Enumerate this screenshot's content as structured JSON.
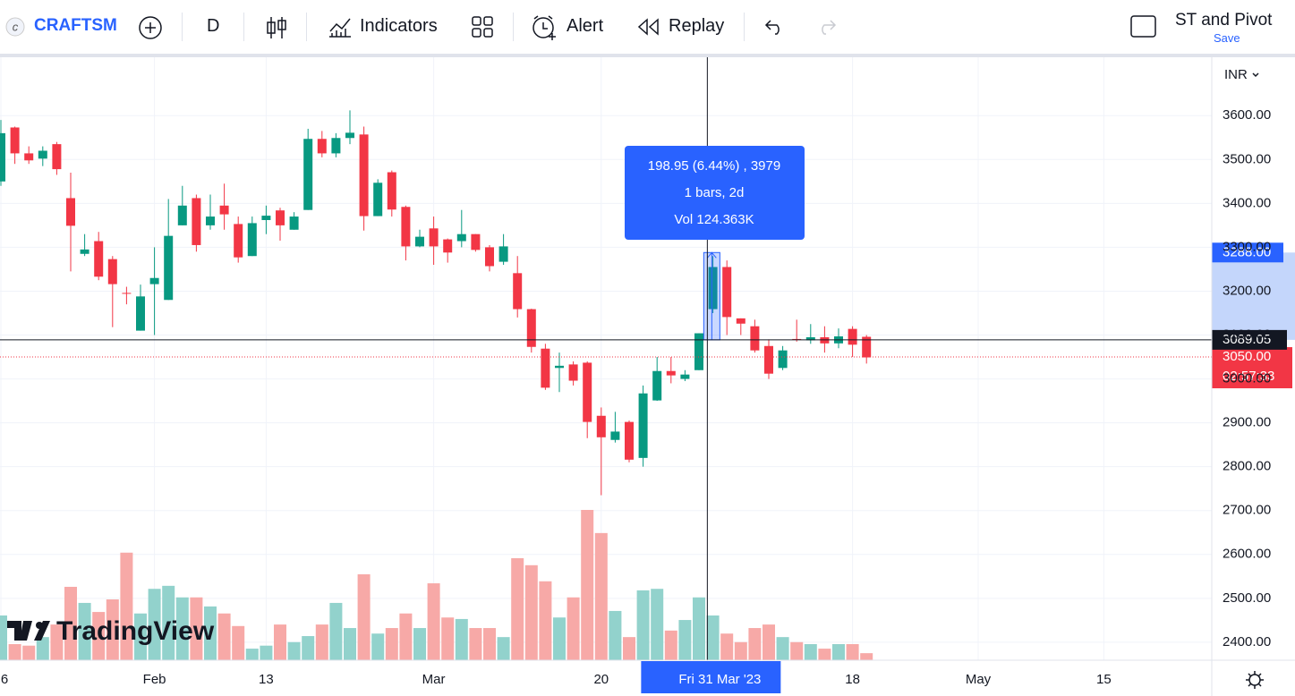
{
  "toolbar": {
    "symbol": "CRAFTSM",
    "interval": "D",
    "indicators": "Indicators",
    "alert": "Alert",
    "replay": "Replay",
    "layout": "ST and Pivot",
    "save": "Save"
  },
  "chart_data": {
    "type": "candlestick",
    "currency": "INR",
    "watermark": "TradingView",
    "open": [
      3450,
      3573,
      3514,
      3502,
      3535,
      3412,
      3285,
      3314,
      3273,
      3196,
      3110,
      3216,
      3180,
      3350,
      3412,
      3350,
      3395,
      3353,
      3280,
      3362,
      3384,
      3340,
      3385,
      3547,
      3514,
      3549,
      3557,
      3371,
      3471,
      3392,
      3302,
      3343,
      3318,
      3314,
      3330,
      3300,
      3267,
      3241,
      3159,
      3069,
      3025,
      3033,
      3037,
      2916,
      2861,
      2902,
      2820,
      2951,
      3018,
      3000,
      3020,
      3159,
      3255,
      3138,
      3120,
      3075,
      3025,
      3091,
      3088,
      3095,
      3081,
      3114,
      3096
    ],
    "high": [
      3590,
      3575,
      3530,
      3530,
      3540,
      3470,
      3330,
      3335,
      3280,
      3210,
      3215,
      3300,
      3410,
      3440,
      3420,
      3420,
      3445,
      3370,
      3370,
      3395,
      3390,
      3380,
      3570,
      3565,
      3560,
      3612,
      3575,
      3455,
      3475,
      3395,
      3340,
      3370,
      3320,
      3385,
      3330,
      3305,
      3330,
      3280,
      3160,
      3080,
      3060,
      3040,
      3040,
      2935,
      2925,
      2905,
      2985,
      3050,
      3050,
      3020,
      3104,
      3280,
      3270,
      3138,
      3135,
      3090,
      3075,
      3135,
      3125,
      3120,
      3115,
      3120,
      3100
    ],
    "low": [
      3440,
      3490,
      3490,
      3485,
      3465,
      3245,
      3280,
      3225,
      3118,
      3170,
      3110,
      3100,
      3180,
      3350,
      3290,
      3340,
      3340,
      3265,
      3280,
      3330,
      3315,
      3340,
      3385,
      3505,
      3505,
      3535,
      3338,
      3371,
      3370,
      3270,
      3300,
      3260,
      3265,
      3300,
      3290,
      3245,
      3260,
      3140,
      3060,
      2975,
      2970,
      2985,
      2865,
      2735,
      2855,
      2810,
      2800,
      2950,
      2990,
      2995,
      3020,
      3150,
      3100,
      3100,
      3060,
      3000,
      3020,
      3085,
      3080,
      3060,
      3070,
      3050,
      3035
    ],
    "close": [
      3560,
      3514,
      3498,
      3520,
      3478,
      3349,
      3295,
      3233,
      3216,
      3194,
      3188,
      3230,
      3326,
      3395,
      3305,
      3370,
      3375,
      3277,
      3355,
      3372,
      3350,
      3370,
      3547,
      3514,
      3549,
      3561,
      3371,
      3447,
      3386,
      3302,
      3324,
      3302,
      3288,
      3330,
      3294,
      3257,
      3302,
      3159,
      3073,
      2980,
      3030,
      2996,
      2902,
      2867,
      2880,
      2816,
      2967,
      3018,
      3008,
      3010,
      3104,
      3255,
      3141,
      3126,
      3065,
      3012,
      3065,
      3089,
      3095,
      3081,
      3097,
      3078,
      3049
    ],
    "volume": [
      89,
      32,
      29,
      46,
      71,
      146,
      114,
      96,
      121,
      214,
      93,
      142,
      148,
      125,
      125,
      107,
      93,
      68,
      23,
      29,
      71,
      36,
      48,
      71,
      114,
      64,
      171,
      53,
      64,
      93,
      64,
      153,
      85,
      82,
      64,
      64,
      46,
      203,
      189,
      157,
      85,
      125,
      299,
      253,
      98,
      46,
      139,
      142,
      59,
      80,
      125,
      89,
      53,
      36,
      64,
      71,
      46,
      36,
      32,
      23,
      32,
      32,
      14
    ],
    "up_color": "#089981",
    "down_color": "#f23645",
    "up_volume_color": "#92d2cc",
    "down_volume_color": "#f7a9a7",
    "ylim": [
      2359,
      3733
    ],
    "yticks": [
      {
        "value": 2400,
        "label": "2400.00"
      },
      {
        "value": 2500,
        "label": "2500.00"
      },
      {
        "value": 2600,
        "label": "2600.00"
      },
      {
        "value": 2700,
        "label": "2700.00"
      },
      {
        "value": 2800,
        "label": "2800.00"
      },
      {
        "value": 2900,
        "label": "2900.00"
      },
      {
        "value": 3000,
        "label": "3000.00"
      },
      {
        "value": 3100,
        "label": "3100.00"
      },
      {
        "value": 3200,
        "label": "3200.00"
      },
      {
        "value": 3300,
        "label": "3300.00"
      },
      {
        "value": 3400,
        "label": "3400.00"
      },
      {
        "value": 3500,
        "label": "3500.00"
      },
      {
        "value": 3600,
        "label": "3600.00"
      }
    ],
    "xticks": [
      {
        "value": 0,
        "label": "6"
      },
      {
        "value": 11,
        "label": "Feb"
      },
      {
        "value": 19,
        "label": "13"
      },
      {
        "value": 31,
        "label": "Mar"
      },
      {
        "value": 43,
        "label": "20"
      },
      {
        "value": 61,
        "label": "18"
      },
      {
        "value": 70,
        "label": "May"
      },
      {
        "value": 79,
        "label": "15"
      }
    ],
    "grid": true,
    "last_price": {
      "value": 3050,
      "label": "3050.00"
    },
    "countdown": "02:57:33",
    "crosshair": {
      "index": 50.6,
      "date": "Fri 31 Mar '23",
      "price": {
        "value": 3089.05,
        "label": "3089.05"
      }
    },
    "measure": {
      "high": {
        "value": 3288,
        "label": "3288.00"
      },
      "lines": [
        "198.95 (6.44%) , 3979",
        "1 bars, 2d",
        "Vol 124.363K"
      ]
    }
  }
}
